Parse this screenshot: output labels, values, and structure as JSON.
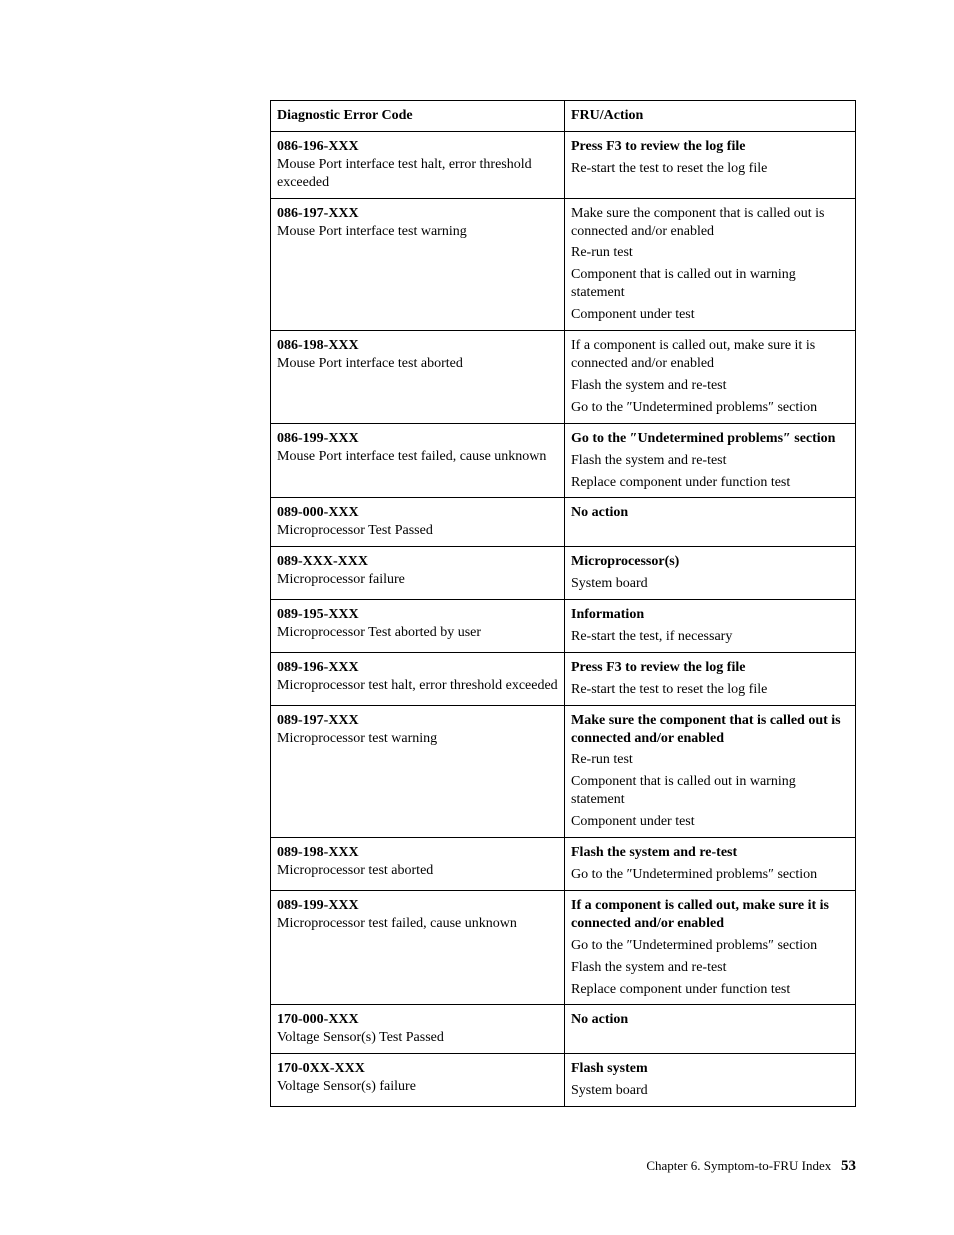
{
  "header": {
    "col1": "Diagnostic Error Code",
    "col2": "FRU/Action"
  },
  "rows": [
    {
      "code": "086-196-XXX",
      "desc": "Mouse Port interface test halt, error threshold exceeded",
      "actions": [
        "Press F3 to review the log file",
        "Re-start the test to reset the log file"
      ]
    },
    {
      "code": "086-197-XXX",
      "desc": "Mouse Port interface test warning",
      "actions": [
        "Make sure the component that is called out is connected and/or enabled",
        "Re-run test",
        "Component that is called out in warning statement",
        "Component under test"
      ],
      "first_plain": true
    },
    {
      "code": "086-198-XXX",
      "desc": "Mouse Port interface test aborted",
      "actions": [
        "If a component is called out, make sure it is connected and/or enabled",
        "Flash the system and re-test",
        "Go to the ″Undetermined problems″ section"
      ],
      "first_plain": true
    },
    {
      "code": "086-199-XXX",
      "desc": "Mouse Port interface test failed, cause unknown",
      "actions": [
        "Go to the ″Undetermined problems″ section",
        "Flash the system and re-test",
        "Replace component under function test"
      ]
    },
    {
      "code": "089-000-XXX",
      "desc": "Microprocessor Test Passed",
      "actions": [
        "No action"
      ]
    },
    {
      "code": "089-XXX-XXX",
      "desc": "Microprocessor failure",
      "actions": [
        "Microprocessor(s)",
        "System board"
      ]
    },
    {
      "code": "089-195-XXX",
      "desc": "Microprocessor Test aborted by user",
      "actions": [
        "Information",
        "Re-start the test, if necessary"
      ]
    },
    {
      "code": "089-196-XXX",
      "desc": "Microprocessor test halt, error threshold exceeded",
      "actions": [
        "Press F3 to review the log file",
        "Re-start the test to reset the log file"
      ]
    },
    {
      "code": "089-197-XXX",
      "desc": "Microprocessor test warning",
      "actions": [
        "Make sure the component that is called out is connected and/or enabled",
        "Re-run test",
        "Component that is called out in warning statement",
        "Component under test"
      ]
    },
    {
      "code": "089-198-XXX",
      "desc": "Microprocessor test aborted",
      "actions": [
        "Flash the system and re-test",
        "Go to the ″Undetermined problems″ section"
      ]
    },
    {
      "code": "089-199-XXX",
      "desc": "Microprocessor test failed, cause unknown",
      "actions": [
        "If a component is called out, make sure it is connected and/or enabled",
        "Go to the ″Undetermined problems″ section",
        "Flash the system and re-test",
        "Replace component under function test"
      ]
    },
    {
      "code": "170-000-XXX",
      "desc": "Voltage Sensor(s) Test Passed",
      "actions": [
        "No action"
      ]
    },
    {
      "code": "170-0XX-XXX",
      "desc": "Voltage Sensor(s) failure",
      "actions": [
        "Flash system",
        "System board"
      ]
    }
  ],
  "footer": {
    "chapter": "Chapter 6. Symptom-to-FRU Index",
    "page": "53"
  }
}
